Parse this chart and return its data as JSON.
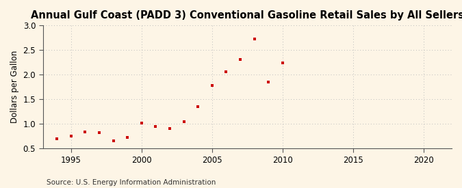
{
  "title": "Annual Gulf Coast (PADD 3) Conventional Gasoline Retail Sales by All Sellers",
  "ylabel": "Dollars per Gallon",
  "source": "Source: U.S. Energy Information Administration",
  "fig_background_color": "#fdf5e6",
  "plot_background_color": "#fdf5e6",
  "marker_color": "#cc0000",
  "years": [
    1994,
    1995,
    1996,
    1997,
    1998,
    1999,
    2000,
    2001,
    2002,
    2003,
    2004,
    2005,
    2006,
    2007,
    2008,
    2009,
    2010
  ],
  "values": [
    0.7,
    0.75,
    0.84,
    0.82,
    0.65,
    0.72,
    1.01,
    0.95,
    0.9,
    1.05,
    1.35,
    1.78,
    2.06,
    2.3,
    2.72,
    1.85,
    2.24
  ],
  "xlim": [
    1993,
    2022
  ],
  "ylim": [
    0.5,
    3.0
  ],
  "xticks": [
    1995,
    2000,
    2005,
    2010,
    2015,
    2020
  ],
  "yticks": [
    0.5,
    1.0,
    1.5,
    2.0,
    2.5,
    3.0
  ],
  "title_fontsize": 10.5,
  "label_fontsize": 8.5,
  "tick_fontsize": 8.5,
  "source_fontsize": 7.5,
  "grid_color": "#bbbbbb",
  "spine_color": "#555555"
}
